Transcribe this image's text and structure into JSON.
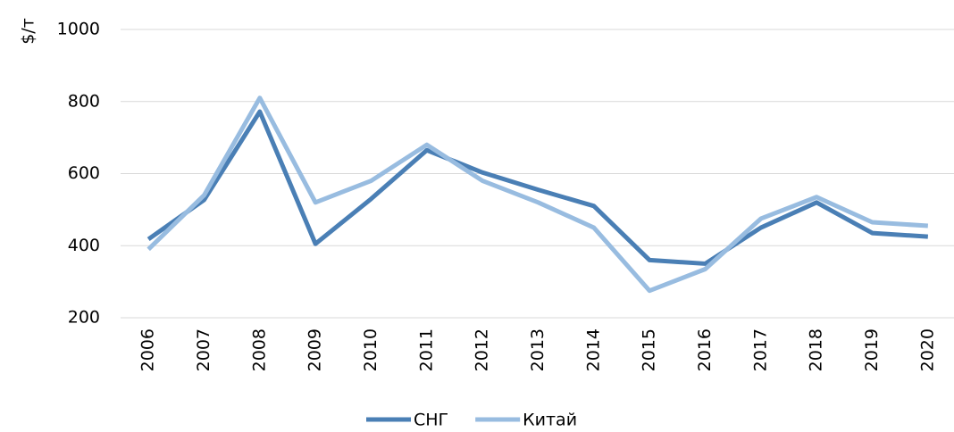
{
  "chart_data": {
    "type": "line",
    "y_label": "$/т",
    "categories": [
      "2006",
      "2007",
      "2008",
      "2009",
      "2010",
      "2011",
      "2012",
      "2013",
      "2014",
      "2015",
      "2016",
      "2017",
      "2018",
      "2019",
      "2020"
    ],
    "series": [
      {
        "name": "СНГ",
        "color": "#4a7fb5",
        "values": [
          418,
          527,
          772,
          405,
          530,
          665,
          603,
          555,
          510,
          360,
          350,
          450,
          520,
          435,
          425
        ]
      },
      {
        "name": "Китай",
        "color": "#98bce0",
        "values": [
          390,
          540,
          810,
          520,
          580,
          680,
          580,
          520,
          450,
          275,
          335,
          475,
          535,
          465,
          455
        ]
      }
    ],
    "ylim": [
      200,
      1000
    ],
    "yticks": [
      200,
      400,
      600,
      800,
      1000
    ],
    "grid": true,
    "legend": "bottom"
  }
}
